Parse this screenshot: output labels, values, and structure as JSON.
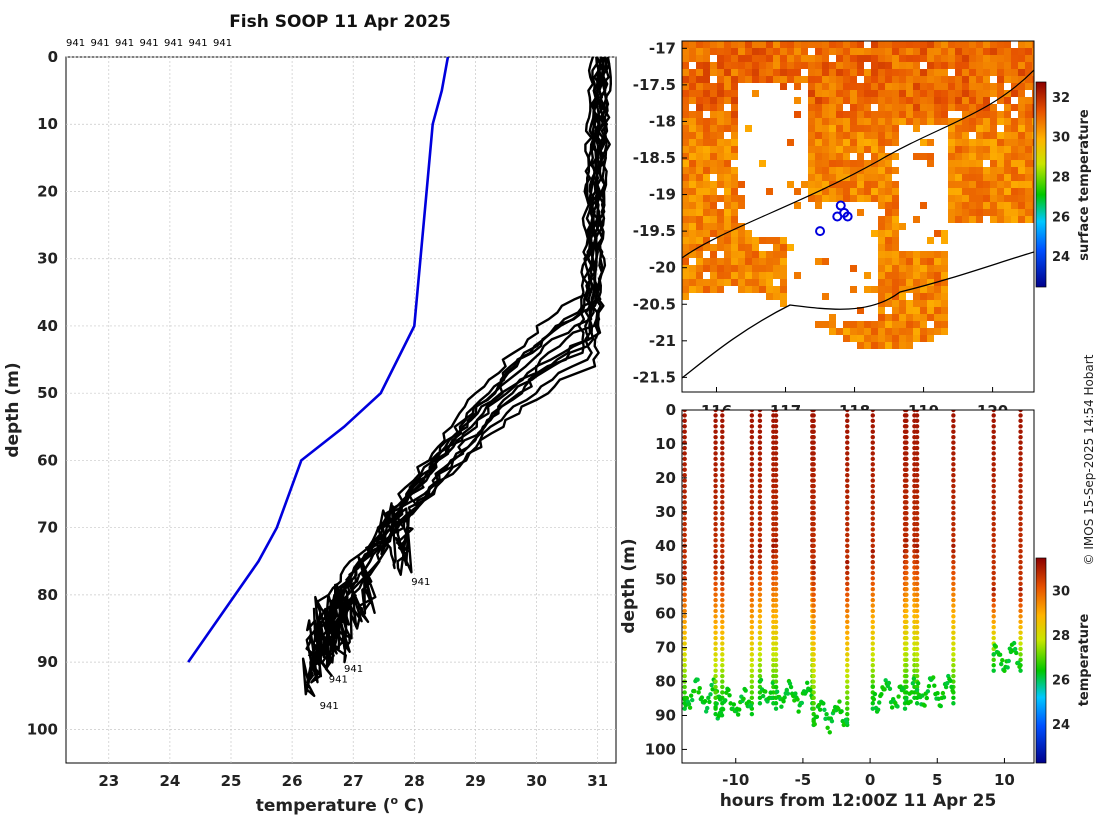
{
  "credit": "© IMOS 15-Sep-2025 14:54 Hobart",
  "chart_data": [
    {
      "type": "line",
      "title": "Fish SOOP 11 Apr 2025",
      "xlabel_main": "temperature (",
      "xlabel_sup": "o",
      "xlabel_end": " C)",
      "ylabel": "depth (m)",
      "xlim": [
        22.3,
        31.3
      ],
      "ylim": [
        105,
        0
      ],
      "xticks": [
        23,
        24,
        25,
        26,
        27,
        28,
        29,
        30,
        31
      ],
      "yticks": [
        0,
        10,
        20,
        30,
        40,
        50,
        60,
        70,
        80,
        90,
        100
      ],
      "top_labels": [
        "941",
        "941",
        "941",
        "941",
        "941",
        "941",
        "941"
      ],
      "profile_labels": [
        {
          "text": "941",
          "t": 27.95,
          "d": 78.5
        },
        {
          "text": "941",
          "t": 26.85,
          "d": 91.5
        },
        {
          "text": "941",
          "t": 26.6,
          "d": 93
        },
        {
          "text": "941",
          "t": 26.45,
          "d": 97
        }
      ],
      "climatology": {
        "name": "climatology",
        "color": "#0000dd",
        "temp": [
          28.55,
          28.45,
          28.3,
          28.2,
          28.0,
          27.45,
          26.85,
          26.15,
          25.75,
          25.45,
          24.3
        ],
        "depth": [
          0,
          5,
          10,
          20,
          40,
          50,
          55,
          60,
          70,
          75,
          90
        ]
      },
      "profiles": [
        {
          "top": 31.05,
          "mix": 45,
          "bottom": 26.9,
          "max": 88,
          "color": "#000000"
        },
        {
          "top": 31.0,
          "mix": 42,
          "bottom": 26.5,
          "max": 89,
          "color": "#000000"
        },
        {
          "top": 31.1,
          "mix": 40,
          "bottom": 27.0,
          "max": 85,
          "color": "#000000"
        },
        {
          "top": 30.95,
          "mix": 38,
          "bottom": 26.3,
          "max": 95,
          "color": "#000000"
        },
        {
          "top": 31.15,
          "mix": 36,
          "bottom": 26.6,
          "max": 92,
          "color": "#000000"
        },
        {
          "top": 31.0,
          "mix": 43,
          "bottom": 26.8,
          "max": 90,
          "color": "#000000"
        },
        {
          "top": 31.2,
          "mix": 41,
          "bottom": 27.8,
          "max": 77,
          "color": "#000000"
        },
        {
          "top": 31.05,
          "mix": 39,
          "bottom": 26.4,
          "max": 93,
          "color": "#000000"
        },
        {
          "top": 30.9,
          "mix": 44,
          "bottom": 27.2,
          "max": 84,
          "color": "#000000"
        },
        {
          "top": 31.1,
          "mix": 37,
          "bottom": 26.5,
          "max": 91,
          "color": "#000000"
        },
        {
          "top": 31.0,
          "mix": 35,
          "bottom": 27.6,
          "max": 76,
          "color": "#000000"
        },
        {
          "top": 31.15,
          "mix": 46,
          "bottom": 26.7,
          "max": 88,
          "color": "#000000"
        }
      ]
    },
    {
      "type": "heatmap",
      "xlabel": "",
      "xticks": [
        116,
        117,
        118,
        119,
        120
      ],
      "yticks": [
        -17,
        -17.5,
        -18,
        -18.5,
        -19,
        -19.5,
        -20,
        -20.5,
        -21,
        -21.5
      ],
      "xlim": [
        115.5,
        120.6
      ],
      "ylim": [
        -16.9,
        -21.7
      ],
      "colorbar_label": "surface temperature",
      "colorbar_ticks": [
        24,
        26,
        28,
        30,
        32
      ],
      "colorbar_range": [
        22.5,
        32.8
      ],
      "fish_positions": [
        [
          117.8,
          -19.15
        ],
        [
          117.85,
          -19.25
        ],
        [
          117.9,
          -19.3
        ],
        [
          117.75,
          -19.3
        ],
        [
          117.5,
          -19.5
        ]
      ],
      "sst_base": 30.5
    },
    {
      "type": "scatter",
      "xlabel": "hours from 12:00Z 11 Apr 25",
      "ylabel": "depth (m)",
      "xlim": [
        -14,
        12.2
      ],
      "ylim": [
        104,
        0
      ],
      "xticks": [
        -10,
        -5,
        0,
        5,
        10
      ],
      "yticks": [
        0,
        10,
        20,
        30,
        40,
        50,
        60,
        70,
        80,
        90,
        100
      ],
      "colorbar_label": "temperature",
      "colorbar_ticks": [
        24,
        26,
        28,
        30
      ],
      "colorbar_range": [
        22.3,
        31.5
      ],
      "casts": [
        {
          "t0": -13.8,
          "t1": -11.0,
          "max": 88,
          "mix": 45
        },
        {
          "t0": -11.5,
          "t1": -8.8,
          "max": 91,
          "mix": 42
        },
        {
          "t0": -8.2,
          "t1": -7.2,
          "max": 87,
          "mix": 40
        },
        {
          "t0": -7.0,
          "t1": -4.3,
          "max": 88,
          "mix": 38
        },
        {
          "t0": -4.2,
          "t1": -1.7,
          "max": 94,
          "mix": 44
        },
        {
          "t0": 0.2,
          "t1": 2.6,
          "max": 88,
          "mix": 41
        },
        {
          "t0": 2.7,
          "t1": 3.3,
          "max": 86,
          "mix": 37
        },
        {
          "t0": 3.5,
          "t1": 6.2,
          "max": 87,
          "mix": 39
        },
        {
          "t0": 9.2,
          "t1": 11.2,
          "max": 77,
          "mix": 52
        }
      ]
    }
  ]
}
